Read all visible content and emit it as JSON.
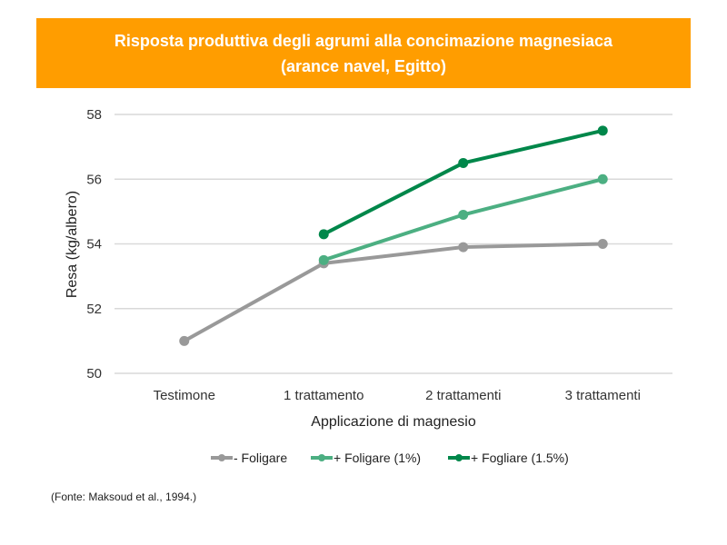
{
  "title_line1": "Risposta produttiva degli agrumi alla concimazione magnesiaca",
  "title_line2": "(arance navel, Egitto)",
  "source": "(Fonte: Maksoud et al., 1994.)",
  "colors": {
    "header": "#ff9d00",
    "gray": "#999999",
    "light_green": "#4caf82",
    "dark_green": "#00874a",
    "grid": "#d9d9d9"
  },
  "chart_data": {
    "type": "line",
    "title": "Risposta produttiva degli agrumi alla concimazione magnesiaca (arance navel, Egitto)",
    "xlabel": "Applicazione di magnesio",
    "ylabel": "Resa (kg/albero)",
    "categories": [
      "Testimone",
      "1 trattamento",
      "2 trattamenti",
      "3 trattamenti"
    ],
    "ylim": [
      50,
      58
    ],
    "yticks": [
      50,
      52,
      54,
      56,
      58
    ],
    "grid": true,
    "legend_position": "bottom",
    "series": [
      {
        "name": "- Foligare",
        "color": "#999999",
        "values": [
          51.0,
          53.4,
          53.9,
          54.0
        ]
      },
      {
        "name": "+ Foligare (1%)",
        "color": "#4caf82",
        "values": [
          null,
          53.5,
          54.9,
          56.0
        ]
      },
      {
        "name": "+ Fogliare (1.5%)",
        "color": "#00874a",
        "values": [
          null,
          54.3,
          56.5,
          57.5
        ]
      }
    ]
  }
}
